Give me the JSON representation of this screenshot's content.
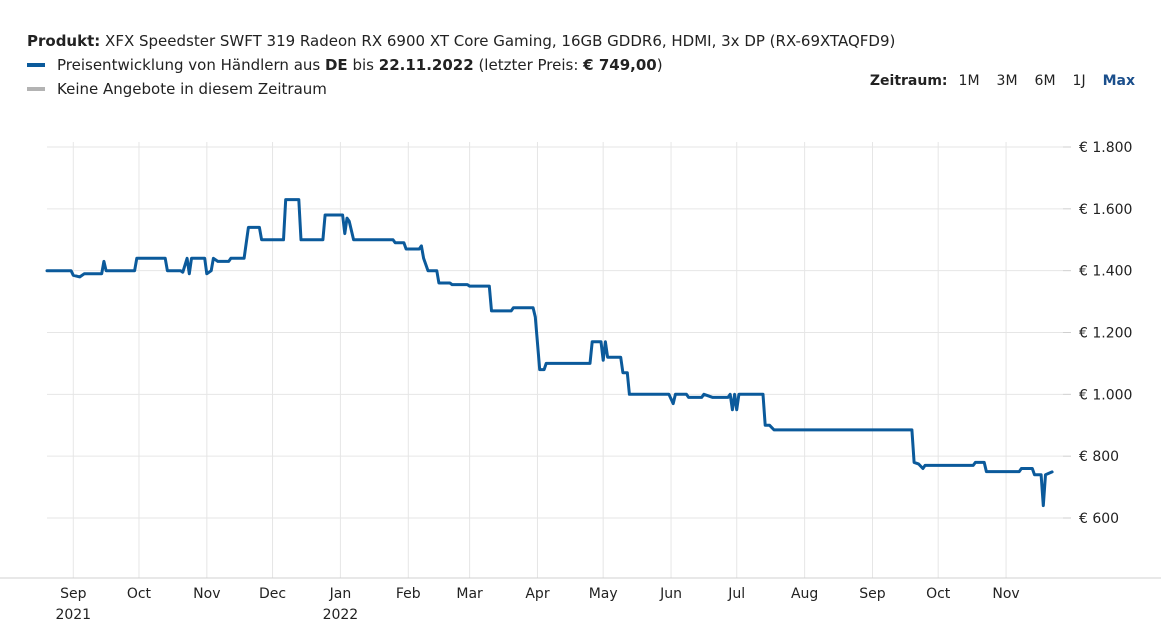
{
  "header": {
    "product_label": "Produkt:",
    "product_name": "XFX Speedster SWFT 319 Radeon RX 6900 XT Core Gaming, 16GB GDDR6, HDMI, 3x DP (RX-69XTAQFD9)",
    "legend1_prefix": "Preisentwicklung von Händlern aus",
    "legend1_country": "DE",
    "legend1_mid": "bis",
    "legend1_date": "22.11.2022",
    "legend1_last_prefix": "(letzter Preis:",
    "legend1_last_price": "€ 749,00",
    "legend1_suffix": ")",
    "legend2": "Keine Angebote in diesem Zeitraum"
  },
  "range": {
    "label": "Zeitraum:",
    "options": [
      "1M",
      "3M",
      "6M",
      "1J",
      "Max"
    ],
    "active": "Max"
  },
  "colors": {
    "series": "#0b5a9b",
    "no_offers": "#b3b3b3",
    "grid": "#e6e6e6",
    "active": "#1b4f8c"
  },
  "chart_data": {
    "type": "line",
    "title": "",
    "xlabel": "",
    "ylabel": "",
    "ylim": [
      600,
      1800
    ],
    "y_ticks": [
      "€ 1.800",
      "€ 1.600",
      "€ 1.400",
      "€ 1.200",
      "€ 1.000",
      "€ 800",
      "€ 600"
    ],
    "y_tick_values": [
      1800,
      1600,
      1400,
      1200,
      1000,
      800,
      600
    ],
    "x_ticks": [
      {
        "label": "Sep",
        "year": "2021",
        "date": "2021-09-01"
      },
      {
        "label": "Oct",
        "year": "",
        "date": "2021-10-01"
      },
      {
        "label": "Nov",
        "year": "",
        "date": "2021-11-01"
      },
      {
        "label": "Dec",
        "year": "",
        "date": "2021-12-01"
      },
      {
        "label": "Jan",
        "year": "2022",
        "date": "2022-01-01"
      },
      {
        "label": "Feb",
        "year": "",
        "date": "2022-02-01"
      },
      {
        "label": "Mar",
        "year": "",
        "date": "2022-03-01"
      },
      {
        "label": "Apr",
        "year": "",
        "date": "2022-04-01"
      },
      {
        "label": "May",
        "year": "",
        "date": "2022-05-01"
      },
      {
        "label": "Jun",
        "year": "",
        "date": "2022-06-01"
      },
      {
        "label": "Jul",
        "year": "",
        "date": "2022-07-01"
      },
      {
        "label": "Aug",
        "year": "",
        "date": "2022-08-01"
      },
      {
        "label": "Sep",
        "year": "",
        "date": "2022-09-01"
      },
      {
        "label": "Oct",
        "year": "",
        "date": "2022-10-01"
      },
      {
        "label": "Nov",
        "year": "",
        "date": "2022-11-01"
      }
    ],
    "x_range": [
      "2021-08-20",
      "2022-11-27"
    ],
    "series": [
      {
        "name": "Preisentwicklung von Händlern aus DE",
        "points": [
          [
            "2021-08-20",
            1400
          ],
          [
            "2021-08-31",
            1400
          ],
          [
            "2021-09-01",
            1385
          ],
          [
            "2021-09-04",
            1380
          ],
          [
            "2021-09-06",
            1390
          ],
          [
            "2021-09-14",
            1390
          ],
          [
            "2021-09-15",
            1430
          ],
          [
            "2021-09-16",
            1400
          ],
          [
            "2021-09-29",
            1400
          ],
          [
            "2021-09-30",
            1440
          ],
          [
            "2021-10-13",
            1440
          ],
          [
            "2021-10-14",
            1400
          ],
          [
            "2021-10-20",
            1400
          ],
          [
            "2021-10-21",
            1395
          ],
          [
            "2021-10-23",
            1440
          ],
          [
            "2021-10-24",
            1390
          ],
          [
            "2021-10-25",
            1440
          ],
          [
            "2021-10-31",
            1440
          ],
          [
            "2021-11-01",
            1390
          ],
          [
            "2021-11-03",
            1400
          ],
          [
            "2021-11-04",
            1440
          ],
          [
            "2021-11-06",
            1430
          ],
          [
            "2021-11-11",
            1430
          ],
          [
            "2021-11-12",
            1440
          ],
          [
            "2021-11-18",
            1440
          ],
          [
            "2021-11-20",
            1540
          ],
          [
            "2021-11-25",
            1540
          ],
          [
            "2021-11-26",
            1500
          ],
          [
            "2021-12-06",
            1500
          ],
          [
            "2021-12-07",
            1630
          ],
          [
            "2021-12-13",
            1630
          ],
          [
            "2021-12-14",
            1500
          ],
          [
            "2021-12-24",
            1500
          ],
          [
            "2021-12-25",
            1580
          ],
          [
            "2022-01-02",
            1580
          ],
          [
            "2022-01-03",
            1520
          ],
          [
            "2022-01-04",
            1570
          ],
          [
            "2022-01-05",
            1560
          ],
          [
            "2022-01-06",
            1530
          ],
          [
            "2022-01-07",
            1500
          ],
          [
            "2022-01-25",
            1500
          ],
          [
            "2022-01-26",
            1490
          ],
          [
            "2022-01-30",
            1490
          ],
          [
            "2022-01-31",
            1470
          ],
          [
            "2022-02-06",
            1470
          ],
          [
            "2022-02-07",
            1480
          ],
          [
            "2022-02-08",
            1440
          ],
          [
            "2022-02-10",
            1400
          ],
          [
            "2022-02-14",
            1400
          ],
          [
            "2022-02-15",
            1360
          ],
          [
            "2022-02-20",
            1360
          ],
          [
            "2022-02-21",
            1355
          ],
          [
            "2022-02-28",
            1355
          ],
          [
            "2022-03-01",
            1350
          ],
          [
            "2022-03-10",
            1350
          ],
          [
            "2022-03-11",
            1270
          ],
          [
            "2022-03-20",
            1270
          ],
          [
            "2022-03-21",
            1280
          ],
          [
            "2022-03-30",
            1280
          ],
          [
            "2022-03-31",
            1250
          ],
          [
            "2022-04-02",
            1080
          ],
          [
            "2022-04-04",
            1080
          ],
          [
            "2022-04-05",
            1100
          ],
          [
            "2022-04-25",
            1100
          ],
          [
            "2022-04-26",
            1170
          ],
          [
            "2022-04-30",
            1170
          ],
          [
            "2022-05-01",
            1110
          ],
          [
            "2022-05-02",
            1170
          ],
          [
            "2022-05-03",
            1120
          ],
          [
            "2022-05-09",
            1120
          ],
          [
            "2022-05-10",
            1070
          ],
          [
            "2022-05-12",
            1070
          ],
          [
            "2022-05-13",
            1000
          ],
          [
            "2022-05-31",
            1000
          ],
          [
            "2022-06-02",
            970
          ],
          [
            "2022-06-03",
            1000
          ],
          [
            "2022-06-08",
            1000
          ],
          [
            "2022-06-09",
            990
          ],
          [
            "2022-06-15",
            990
          ],
          [
            "2022-06-16",
            1000
          ],
          [
            "2022-06-20",
            990
          ],
          [
            "2022-06-27",
            990
          ],
          [
            "2022-06-28",
            1000
          ],
          [
            "2022-06-29",
            950
          ],
          [
            "2022-06-30",
            1000
          ],
          [
            "2022-07-01",
            950
          ],
          [
            "2022-07-02",
            1000
          ],
          [
            "2022-07-13",
            1000
          ],
          [
            "2022-07-14",
            900
          ],
          [
            "2022-07-16",
            900
          ],
          [
            "2022-07-18",
            885
          ],
          [
            "2022-09-19",
            885
          ],
          [
            "2022-09-20",
            780
          ],
          [
            "2022-09-22",
            775
          ],
          [
            "2022-09-24",
            760
          ],
          [
            "2022-09-25",
            770
          ],
          [
            "2022-10-17",
            770
          ],
          [
            "2022-10-18",
            780
          ],
          [
            "2022-10-22",
            780
          ],
          [
            "2022-10-23",
            750
          ],
          [
            "2022-11-07",
            750
          ],
          [
            "2022-11-08",
            760
          ],
          [
            "2022-11-13",
            760
          ],
          [
            "2022-11-14",
            740
          ],
          [
            "2022-11-17",
            740
          ],
          [
            "2022-11-18",
            640
          ],
          [
            "2022-11-19",
            740
          ],
          [
            "2022-11-22",
            749
          ]
        ]
      }
    ],
    "grid": true,
    "legend_position": "top-left"
  }
}
